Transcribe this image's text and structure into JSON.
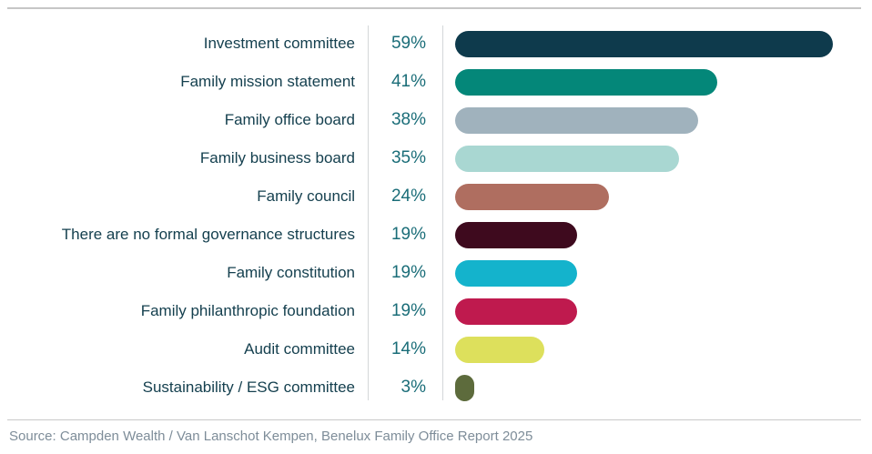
{
  "chart_data": {
    "type": "bar",
    "orientation": "horizontal",
    "title": "",
    "xlabel": "",
    "ylabel": "",
    "xlim": [
      0,
      63
    ],
    "grid": false,
    "legend": false,
    "categories": [
      "Investment committee",
      "Family mission statement",
      "Family office board",
      "Family business board",
      "Family council",
      "There are no formal governance structures",
      "Family constitution",
      "Family philanthropic foundation",
      "Audit committee",
      "Sustainability / ESG committee"
    ],
    "values": [
      59,
      41,
      38,
      35,
      24,
      19,
      19,
      19,
      14,
      3
    ],
    "value_labels": [
      "59%",
      "41%",
      "38%",
      "35%",
      "24%",
      "19%",
      "19%",
      "19%",
      "14%",
      "3%"
    ],
    "bar_colors": [
      "#0e3a4c",
      "#048779",
      "#a0b2bd",
      "#a9d7d2",
      "#af6e60",
      "#3e0a1e",
      "#14b3cc",
      "#bf1a4e",
      "#dde05c",
      "#5d6b3c"
    ]
  },
  "source": {
    "text": "Source: Campden Wealth / Van Lanschot Kempen, Benelux Family Office Report 2025"
  },
  "colors": {
    "label_text": "#15404f",
    "value_text": "#1a6d78",
    "source_text": "#7e8d99",
    "rule": "#c6c6c6",
    "divider": "#d4d7d9"
  }
}
